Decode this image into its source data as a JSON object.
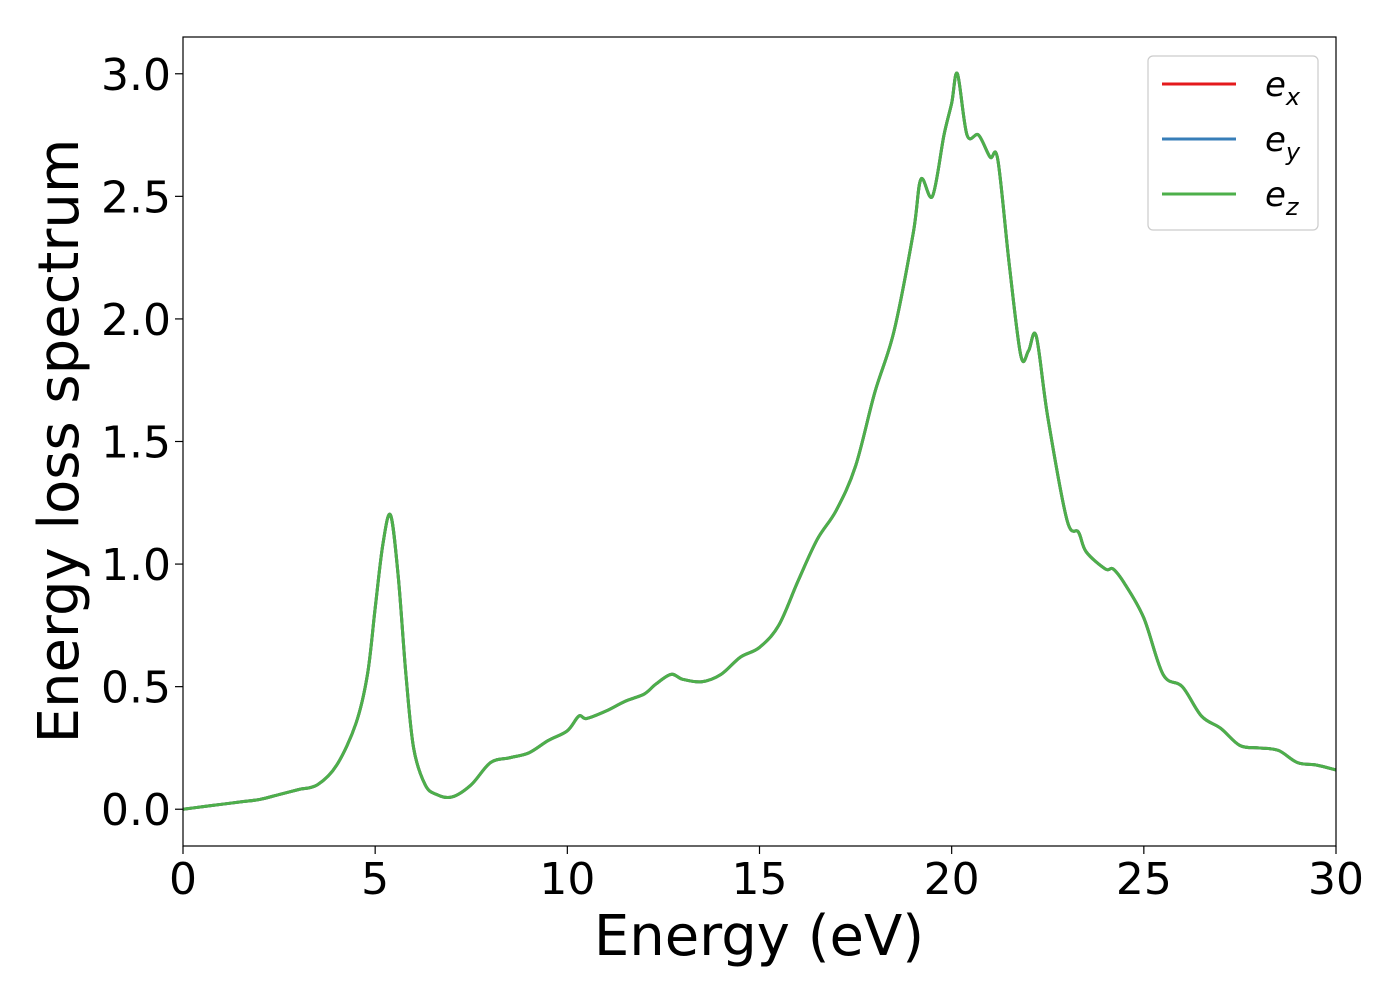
{
  "chart_data": {
    "type": "line",
    "xlabel": "Energy (eV)",
    "ylabel": "Energy loss spectrum",
    "xlim": [
      0,
      30
    ],
    "ylim": [
      -0.15,
      3.15
    ],
    "xticks": [
      {
        "value": 0,
        "label": "0"
      },
      {
        "value": 5,
        "label": "5"
      },
      {
        "value": 10,
        "label": "10"
      },
      {
        "value": 15,
        "label": "15"
      },
      {
        "value": 20,
        "label": "20"
      },
      {
        "value": 25,
        "label": "25"
      },
      {
        "value": 30,
        "label": "30"
      }
    ],
    "yticks": [
      {
        "value": 0.0,
        "label": "0.0"
      },
      {
        "value": 0.5,
        "label": "0.5"
      },
      {
        "value": 1.0,
        "label": "1.0"
      },
      {
        "value": 1.5,
        "label": "1.5"
      },
      {
        "value": 2.0,
        "label": "2.0"
      },
      {
        "value": 2.5,
        "label": "2.5"
      },
      {
        "value": 3.0,
        "label": "3.0"
      }
    ],
    "grid": false,
    "legend_position": "top-right",
    "x": [
      0,
      0.5,
      1,
      1.5,
      2,
      2.5,
      3,
      3.5,
      4,
      4.5,
      4.8,
      5.0,
      5.2,
      5.4,
      5.6,
      5.8,
      6.0,
      6.3,
      6.6,
      7.0,
      7.5,
      8.0,
      8.5,
      9.0,
      9.5,
      10.0,
      10.3,
      10.5,
      11.0,
      11.5,
      12.0,
      12.3,
      12.7,
      13.0,
      13.5,
      14.0,
      14.5,
      15.0,
      15.5,
      16.0,
      16.5,
      17.0,
      17.5,
      18.0,
      18.5,
      19.0,
      19.2,
      19.5,
      19.8,
      20.0,
      20.15,
      20.4,
      20.7,
      21.0,
      21.2,
      21.5,
      21.8,
      22.0,
      22.2,
      22.5,
      23.0,
      23.3,
      23.5,
      24.0,
      24.2,
      24.5,
      25.0,
      25.5,
      26.0,
      26.5,
      27.0,
      27.5,
      28.0,
      28.5,
      29.0,
      29.5,
      30.0
    ],
    "series": [
      {
        "name": "e_x",
        "color": "#e41a1c",
        "values": [
          0.0,
          0.01,
          0.02,
          0.03,
          0.04,
          0.06,
          0.08,
          0.1,
          0.18,
          0.35,
          0.55,
          0.82,
          1.08,
          1.2,
          0.95,
          0.55,
          0.25,
          0.1,
          0.06,
          0.05,
          0.1,
          0.19,
          0.21,
          0.23,
          0.28,
          0.32,
          0.38,
          0.37,
          0.4,
          0.44,
          0.47,
          0.51,
          0.55,
          0.53,
          0.52,
          0.55,
          0.62,
          0.66,
          0.75,
          0.93,
          1.1,
          1.22,
          1.4,
          1.7,
          1.95,
          2.35,
          2.57,
          2.5,
          2.75,
          2.88,
          3.0,
          2.75,
          2.75,
          2.66,
          2.65,
          2.22,
          1.85,
          1.87,
          1.93,
          1.6,
          1.18,
          1.13,
          1.05,
          0.98,
          0.98,
          0.92,
          0.78,
          0.55,
          0.5,
          0.38,
          0.33,
          0.26,
          0.25,
          0.24,
          0.19,
          0.18,
          0.16
        ]
      },
      {
        "name": "e_y",
        "color": "#377eb8",
        "values": [
          0.0,
          0.01,
          0.02,
          0.03,
          0.04,
          0.06,
          0.08,
          0.1,
          0.18,
          0.35,
          0.55,
          0.82,
          1.08,
          1.2,
          0.95,
          0.55,
          0.25,
          0.1,
          0.06,
          0.05,
          0.1,
          0.19,
          0.21,
          0.23,
          0.28,
          0.32,
          0.38,
          0.37,
          0.4,
          0.44,
          0.47,
          0.51,
          0.55,
          0.53,
          0.52,
          0.55,
          0.62,
          0.66,
          0.75,
          0.93,
          1.1,
          1.22,
          1.4,
          1.7,
          1.95,
          2.35,
          2.57,
          2.5,
          2.75,
          2.88,
          3.0,
          2.75,
          2.75,
          2.66,
          2.65,
          2.22,
          1.85,
          1.87,
          1.93,
          1.6,
          1.18,
          1.13,
          1.05,
          0.98,
          0.98,
          0.92,
          0.78,
          0.55,
          0.5,
          0.38,
          0.33,
          0.26,
          0.25,
          0.24,
          0.19,
          0.18,
          0.16
        ]
      },
      {
        "name": "e_z",
        "color": "#4daf4a",
        "values": [
          0.0,
          0.01,
          0.02,
          0.03,
          0.04,
          0.06,
          0.08,
          0.1,
          0.18,
          0.35,
          0.55,
          0.82,
          1.08,
          1.2,
          0.95,
          0.55,
          0.25,
          0.1,
          0.06,
          0.05,
          0.1,
          0.19,
          0.21,
          0.23,
          0.28,
          0.32,
          0.38,
          0.37,
          0.4,
          0.44,
          0.47,
          0.51,
          0.55,
          0.53,
          0.52,
          0.55,
          0.62,
          0.66,
          0.75,
          0.93,
          1.1,
          1.22,
          1.4,
          1.7,
          1.95,
          2.35,
          2.57,
          2.5,
          2.75,
          2.88,
          3.0,
          2.75,
          2.75,
          2.66,
          2.65,
          2.22,
          1.85,
          1.87,
          1.93,
          1.6,
          1.18,
          1.13,
          1.05,
          0.98,
          0.98,
          0.92,
          0.78,
          0.55,
          0.5,
          0.38,
          0.33,
          0.26,
          0.25,
          0.24,
          0.19,
          0.18,
          0.16
        ]
      }
    ],
    "legend": [
      {
        "base": "e",
        "sub": "x",
        "color": "#e41a1c"
      },
      {
        "base": "e",
        "sub": "y",
        "color": "#377eb8"
      },
      {
        "base": "e",
        "sub": "z",
        "color": "#4daf4a"
      }
    ]
  }
}
